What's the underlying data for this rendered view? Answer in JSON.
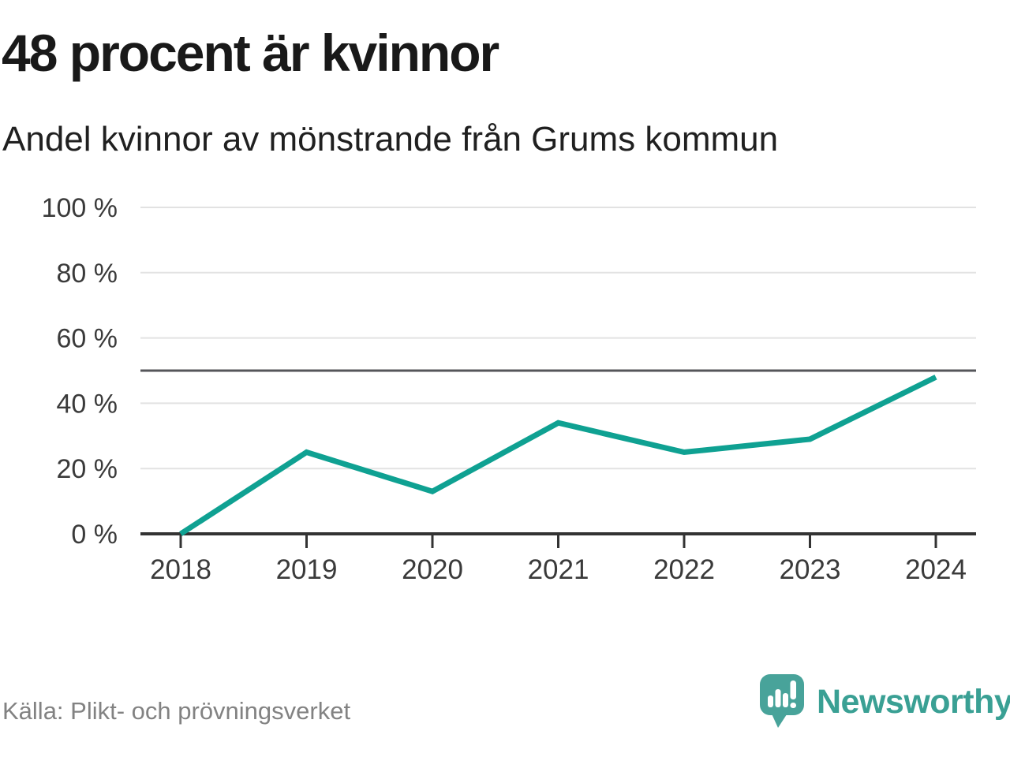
{
  "header": {
    "title": "48 procent är kvinnor",
    "subtitle": "Andel kvinnor av mönstrande från Grums kommun"
  },
  "chart_data": {
    "type": "line",
    "title": "48 procent är kvinnor",
    "subtitle": "Andel kvinnor av mönstrande från Grums kommun",
    "x": [
      "2018",
      "2019",
      "2020",
      "2021",
      "2022",
      "2023",
      "2024"
    ],
    "series": [
      {
        "name": "Andel kvinnor av mönstrande från Grums kommun",
        "values": [
          0,
          25,
          13,
          34,
          25,
          29,
          48
        ]
      }
    ],
    "unit": "%",
    "xlabel": "",
    "ylabel": "",
    "ylim": [
      0,
      100
    ],
    "yticks": [
      0,
      20,
      40,
      60,
      80,
      100
    ],
    "ytick_suffix": " %",
    "reference_line": 50,
    "grid": "horizontal",
    "legend": "none",
    "highlight_value_2024": "48"
  },
  "footer": {
    "source": "Källa: Plikt- och prövningsverket",
    "logo_text": "Newsworthy"
  },
  "colors": {
    "accent_line": "#0FA192",
    "grid": "#E2E2E2",
    "reference": "#55565A",
    "axis": "#333333",
    "tick_label": "#3A3A3A",
    "title": "#191919",
    "subtitle": "#202020",
    "source": "#828282",
    "brand": "#3AA094",
    "logo_bubble": "#48A39A",
    "logo_bars": "#FFFFFF"
  },
  "icons": {
    "logo_icon": "bar-chart-speech-bubble-icon"
  }
}
